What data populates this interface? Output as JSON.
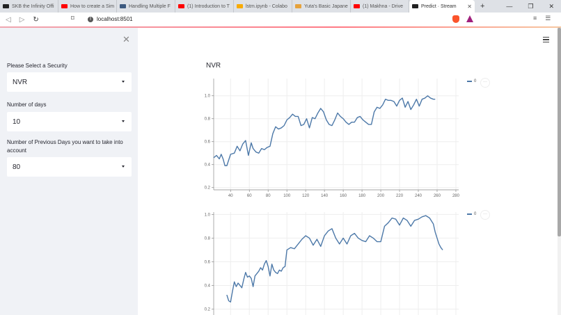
{
  "browser": {
    "tabs": [
      {
        "label": "SKB the Infinity Offi",
        "icon": "mask-icon",
        "color": "#222222"
      },
      {
        "label": "How to create a Sim",
        "icon": "youtube-icon",
        "color": "#ff0000"
      },
      {
        "label": "Handling Multiple F",
        "icon": "page-icon",
        "color": "#3d5a80"
      },
      {
        "label": "(1) Introduction to T",
        "icon": "youtube-icon",
        "color": "#ff0000"
      },
      {
        "label": "lstm.ipynb - Colabo",
        "icon": "colab-icon",
        "color": "#f9ab00"
      },
      {
        "label": "Yuta's Basic Japane",
        "icon": "flower-icon",
        "color": "#e6a23c"
      },
      {
        "label": "(1) Makhna - Drive",
        "icon": "youtube-icon",
        "color": "#ff0000"
      },
      {
        "label": "Predict · Stream",
        "icon": "streamlit-icon",
        "color": "#222222",
        "active": true
      }
    ],
    "new_tab": "+",
    "window_controls": {
      "minimize": "—",
      "restore": "❐",
      "close": "✕"
    },
    "url": "localhost:8501",
    "brave_badge": "1"
  },
  "sidebar": {
    "close": "✕",
    "fields": [
      {
        "label": "Please Select a Security",
        "value": "NVR"
      },
      {
        "label": "Number of days",
        "value": "10"
      },
      {
        "label": "Number of Previous Days you want to take into account",
        "value": "80"
      }
    ]
  },
  "main": {
    "title": "NVR",
    "menu_icon": "hamburger-icon"
  },
  "chart_data": [
    {
      "type": "line",
      "title": "NVR",
      "legend": [
        "0"
      ],
      "color": "#4c78a8",
      "xlim": [
        22,
        283
      ],
      "ylim": [
        0.18,
        1.15
      ],
      "xticks": [
        40,
        60,
        80,
        100,
        120,
        140,
        160,
        180,
        200,
        220,
        240,
        260,
        280
      ],
      "yticks": [
        0.2,
        0.4,
        0.6,
        0.8,
        1.0
      ],
      "grid": true,
      "x": [
        22,
        25,
        28,
        30,
        32,
        34,
        36,
        40,
        44,
        47,
        50,
        53,
        56,
        59,
        62,
        64,
        67,
        70,
        73,
        76,
        79,
        82,
        85,
        88,
        91,
        94,
        97,
        100,
        103,
        106,
        109,
        112,
        115,
        118,
        121,
        124,
        127,
        130,
        133,
        136,
        139,
        142,
        145,
        148,
        151,
        154,
        157,
        160,
        163,
        166,
        169,
        172,
        175,
        178,
        181,
        184,
        187,
        190,
        193,
        196,
        199,
        202,
        205,
        208,
        211,
        214,
        217,
        220,
        223,
        226,
        229,
        232,
        235,
        238,
        241,
        244,
        247,
        250,
        253,
        256,
        258
      ],
      "y": [
        0.46,
        0.48,
        0.45,
        0.49,
        0.45,
        0.39,
        0.39,
        0.49,
        0.5,
        0.56,
        0.52,
        0.58,
        0.61,
        0.48,
        0.59,
        0.54,
        0.51,
        0.5,
        0.54,
        0.53,
        0.55,
        0.56,
        0.67,
        0.73,
        0.71,
        0.72,
        0.74,
        0.79,
        0.81,
        0.84,
        0.82,
        0.82,
        0.74,
        0.75,
        0.8,
        0.72,
        0.81,
        0.8,
        0.85,
        0.89,
        0.86,
        0.79,
        0.75,
        0.74,
        0.79,
        0.85,
        0.82,
        0.8,
        0.77,
        0.75,
        0.77,
        0.77,
        0.81,
        0.82,
        0.79,
        0.77,
        0.75,
        0.75,
        0.86,
        0.9,
        0.89,
        0.92,
        0.97,
        0.96,
        0.96,
        0.95,
        0.91,
        0.96,
        0.98,
        0.9,
        0.95,
        0.88,
        0.92,
        0.97,
        0.91,
        0.97,
        0.98,
        1.0,
        0.98,
        0.97,
        0.97
      ]
    },
    {
      "type": "line",
      "title": "",
      "legend": [
        "0"
      ],
      "color": "#4c78a8",
      "xlim": [
        22,
        283
      ],
      "ylim": [
        0.15,
        1.02
      ],
      "yticks": [
        0.2,
        0.4,
        0.6,
        0.8,
        1.0
      ],
      "grid": true,
      "x": [
        36,
        38,
        40,
        42,
        44,
        46,
        48,
        50,
        52,
        54,
        56,
        58,
        60,
        62,
        64,
        66,
        68,
        70,
        72,
        74,
        76,
        78,
        80,
        82,
        84,
        86,
        88,
        90,
        92,
        94,
        96,
        98,
        100,
        104,
        108,
        112,
        116,
        120,
        124,
        128,
        132,
        136,
        140,
        144,
        148,
        152,
        156,
        160,
        164,
        168,
        172,
        176,
        180,
        184,
        188,
        192,
        196,
        200,
        204,
        208,
        212,
        216,
        220,
        224,
        228,
        232,
        236,
        240,
        244,
        248,
        252,
        256,
        258,
        260,
        262,
        264,
        266
      ],
      "y": [
        0.32,
        0.27,
        0.26,
        0.35,
        0.43,
        0.39,
        0.42,
        0.4,
        0.38,
        0.45,
        0.51,
        0.47,
        0.48,
        0.46,
        0.39,
        0.48,
        0.5,
        0.52,
        0.55,
        0.53,
        0.58,
        0.61,
        0.56,
        0.48,
        0.58,
        0.53,
        0.51,
        0.5,
        0.53,
        0.52,
        0.55,
        0.56,
        0.7,
        0.72,
        0.71,
        0.75,
        0.79,
        0.82,
        0.8,
        0.74,
        0.79,
        0.73,
        0.82,
        0.86,
        0.88,
        0.8,
        0.75,
        0.8,
        0.75,
        0.82,
        0.84,
        0.8,
        0.78,
        0.77,
        0.82,
        0.8,
        0.77,
        0.77,
        0.9,
        0.93,
        0.97,
        0.96,
        0.91,
        0.97,
        0.95,
        0.9,
        0.95,
        0.96,
        0.98,
        0.99,
        0.97,
        0.92,
        0.85,
        0.8,
        0.75,
        0.72,
        0.7
      ]
    }
  ]
}
